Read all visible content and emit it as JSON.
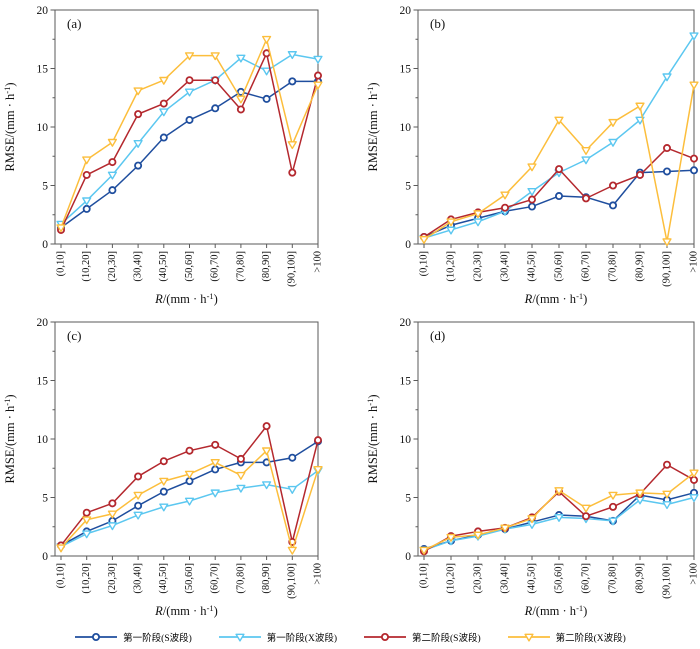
{
  "axes": {
    "ylabel_parts": [
      "RMSE/(mm · h",
      "-1",
      ")"
    ],
    "xlabel_parts": [
      "R",
      "/(mm · h",
      "-1",
      ")"
    ],
    "yticks": [
      "0",
      "5",
      "10",
      "15",
      "20"
    ],
    "ylim": [
      0,
      20
    ],
    "yminor": [
      2.5,
      7.5,
      12.5,
      17.5
    ]
  },
  "categories": [
    "(0,10]",
    "(10,20]",
    "(20,30]",
    "(30,40]",
    "(40,50]",
    "(50,60]",
    "(60,70]",
    "(70,80]",
    "(80,90]",
    "(90,100]",
    ">100"
  ],
  "series_meta": [
    {
      "id": "stage1_s",
      "name": "第一阶段(S波段)",
      "color": "#1f4e9e",
      "marker": "circle"
    },
    {
      "id": "stage1_x",
      "name": "第一阶段(X波段)",
      "color": "#5bc7f0",
      "marker": "triangle"
    },
    {
      "id": "stage2_s",
      "name": "第二阶段(S波段)",
      "color": "#b4282e",
      "marker": "circle"
    },
    {
      "id": "stage2_x",
      "name": "第二阶段(X波段)",
      "color": "#fcbe3c",
      "marker": "triangle"
    }
  ],
  "chart_data": [
    {
      "type": "line",
      "panel_label": "(a)",
      "values": {
        "stage1_s": [
          1.4,
          3.0,
          4.6,
          6.7,
          9.1,
          10.6,
          11.6,
          13.0,
          12.4,
          13.9,
          13.9
        ],
        "stage1_x": [
          1.7,
          3.7,
          5.9,
          8.6,
          11.3,
          13.0,
          14.0,
          15.9,
          14.8,
          16.2,
          15.8
        ],
        "stage2_s": [
          1.2,
          5.9,
          7.0,
          11.1,
          12.0,
          14.0,
          14.0,
          11.5,
          16.3,
          6.1,
          14.4
        ],
        "stage2_x": [
          1.4,
          7.2,
          8.7,
          13.1,
          14.0,
          16.1,
          16.1,
          12.4,
          17.5,
          8.5,
          13.6
        ]
      }
    },
    {
      "type": "line",
      "panel_label": "(b)",
      "values": {
        "stage1_s": [
          0.6,
          1.6,
          2.2,
          2.8,
          3.2,
          4.1,
          4.0,
          3.3,
          6.1,
          6.2,
          6.3
        ],
        "stage1_x": [
          0.5,
          1.2,
          1.9,
          2.8,
          4.5,
          6.1,
          7.2,
          8.7,
          10.6,
          14.3,
          17.8
        ],
        "stage2_s": [
          0.6,
          2.1,
          2.7,
          3.1,
          3.8,
          6.4,
          3.9,
          5.0,
          5.9,
          8.2,
          7.3
        ],
        "stage2_x": [
          0.4,
          1.9,
          2.6,
          4.2,
          6.6,
          10.6,
          8.0,
          10.4,
          11.8,
          0.2,
          13.6
        ]
      }
    },
    {
      "type": "line",
      "panel_label": "(c)",
      "values": {
        "stage1_s": [
          0.9,
          2.1,
          3.0,
          4.3,
          5.5,
          6.4,
          7.4,
          8.0,
          8.0,
          8.4,
          9.8
        ],
        "stage1_x": [
          0.8,
          1.9,
          2.6,
          3.5,
          4.2,
          4.7,
          5.4,
          5.8,
          6.1,
          5.7,
          7.3
        ],
        "stage2_s": [
          0.9,
          3.7,
          4.5,
          6.8,
          8.1,
          9.0,
          9.5,
          8.3,
          11.1,
          1.2,
          9.9
        ],
        "stage2_x": [
          0.7,
          3.1,
          3.6,
          5.2,
          6.4,
          7.0,
          8.0,
          6.9,
          9.0,
          0.5,
          7.4
        ]
      }
    },
    {
      "type": "line",
      "panel_label": "(d)",
      "values": {
        "stage1_s": [
          0.6,
          1.3,
          1.8,
          2.3,
          2.9,
          3.5,
          3.4,
          3.0,
          5.2,
          4.8,
          5.4
        ],
        "stage1_x": [
          0.5,
          1.3,
          1.7,
          2.3,
          2.7,
          3.3,
          3.2,
          3.0,
          4.8,
          4.4,
          5.0
        ],
        "stage2_s": [
          0.4,
          1.7,
          2.1,
          2.4,
          3.3,
          5.5,
          3.4,
          4.2,
          5.3,
          7.8,
          6.5
        ],
        "stage2_x": [
          0.5,
          1.6,
          1.8,
          2.4,
          3.2,
          5.6,
          4.1,
          5.2,
          5.4,
          5.3,
          7.1
        ]
      }
    }
  ]
}
